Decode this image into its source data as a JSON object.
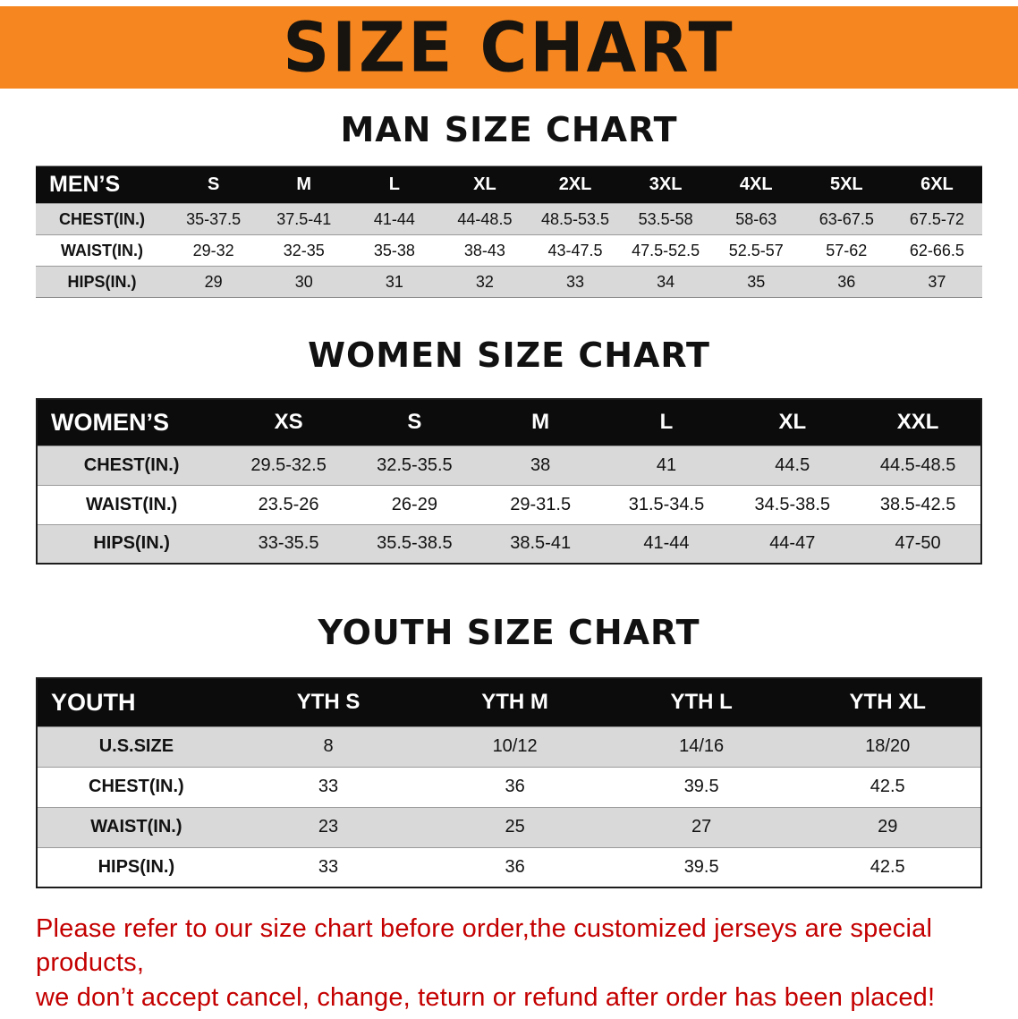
{
  "banner": {
    "title": "SIZE CHART"
  },
  "men": {
    "heading": "MAN SIZE CHART",
    "table": {
      "header": [
        "MEN’S",
        "S",
        "M",
        "L",
        "XL",
        "2XL",
        "3XL",
        "4XL",
        "5XL",
        "6XL"
      ],
      "rows": [
        [
          "CHEST(IN.)",
          "35-37.5",
          "37.5-41",
          "41-44",
          "44-48.5",
          "48.5-53.5",
          "53.5-58",
          "58-63",
          "63-67.5",
          "67.5-72"
        ],
        [
          "WAIST(IN.)",
          "29-32",
          "32-35",
          "35-38",
          "38-43",
          "43-47.5",
          "47.5-52.5",
          "52.5-57",
          "57-62",
          "62-66.5"
        ],
        [
          "HIPS(IN.)",
          "29",
          "30",
          "31",
          "32",
          "33",
          "34",
          "35",
          "36",
          "37"
        ]
      ]
    }
  },
  "women": {
    "heading": "WOMEN SIZE CHART",
    "table": {
      "header": [
        "WOMEN’S",
        "XS",
        "S",
        "M",
        "L",
        "XL",
        "XXL"
      ],
      "rows": [
        [
          "CHEST(IN.)",
          "29.5-32.5",
          "32.5-35.5",
          "38",
          "41",
          "44.5",
          "44.5-48.5"
        ],
        [
          "WAIST(IN.)",
          "23.5-26",
          "26-29",
          "29-31.5",
          "31.5-34.5",
          "34.5-38.5",
          "38.5-42.5"
        ],
        [
          "HIPS(IN.)",
          "33-35.5",
          "35.5-38.5",
          "38.5-41",
          "41-44",
          "44-47",
          "47-50"
        ]
      ]
    }
  },
  "youth": {
    "heading": "YOUTH SIZE CHART",
    "table": {
      "header": [
        "YOUTH",
        "YTH S",
        "YTH M",
        "YTH L",
        "YTH XL"
      ],
      "rows": [
        [
          "U.S.SIZE",
          "8",
          "10/12",
          "14/16",
          "18/20"
        ],
        [
          "CHEST(IN.)",
          "33",
          "36",
          "39.5",
          "42.5"
        ],
        [
          "WAIST(IN.)",
          "23",
          "25",
          "27",
          "29"
        ],
        [
          "HIPS(IN.)",
          "33",
          "36",
          "39.5",
          "42.5"
        ]
      ]
    }
  },
  "disclaimer": {
    "line1": "Please refer to our size chart before order,the customized jerseys are special products,",
    "line2": "we don’t accept cancel, change, teturn or refund after order has been placed!"
  },
  "colors": {
    "banner_bg": "#f6861f",
    "banner_text": "#17130e",
    "heading_text": "#111111",
    "table_header_bg": "#0c0c0c",
    "table_header_text": "#ffffff",
    "row_shade": "#d9d9d9",
    "disclaimer_text": "#c40000"
  }
}
